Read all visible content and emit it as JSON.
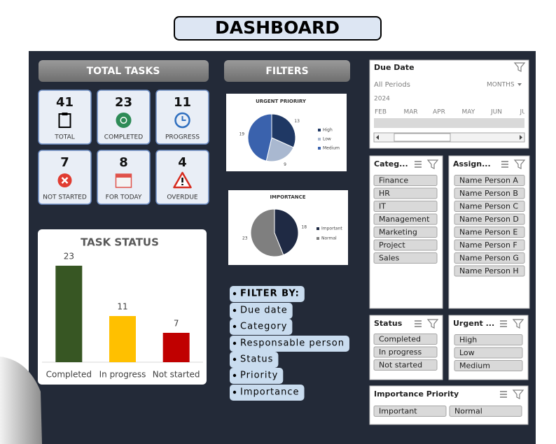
{
  "header": {
    "title": "DASHBOARD"
  },
  "sections": {
    "total_tasks": "TOTAL TASKS",
    "filters": "FILTERS"
  },
  "kpis": [
    {
      "value": 41,
      "label": "TOTAL"
    },
    {
      "value": 23,
      "label": "COMPLETED"
    },
    {
      "value": 11,
      "label": "PROGRESS"
    },
    {
      "value": 7,
      "label": "NOT STARTED"
    },
    {
      "value": 8,
      "label": "FOR TODAY"
    },
    {
      "value": 4,
      "label": "OVERDUE"
    }
  ],
  "chart_data": [
    {
      "type": "pie",
      "title": "URGENT PRIORIRY",
      "categories": [
        "High",
        "Low",
        "Medium"
      ],
      "values": [
        13,
        9,
        19
      ],
      "colors": [
        "#1f3864",
        "#a9b8d0",
        "#3a62ad"
      ]
    },
    {
      "type": "pie",
      "title": "IMPORTANCE",
      "categories": [
        "Important",
        "Normal"
      ],
      "values": [
        18,
        23
      ],
      "colors": [
        "#1f2a44",
        "#7f7f7f"
      ]
    },
    {
      "type": "bar",
      "title": "TASK STATUS",
      "categories": [
        "Completed",
        "In progress",
        "Not started"
      ],
      "values": [
        23,
        11,
        7
      ],
      "colors": [
        "#375623",
        "#ffc000",
        "#c00000"
      ]
    }
  ],
  "filter_by": {
    "title": "FILTER BY:",
    "items": [
      "Due date",
      "Category",
      "Responsable person",
      "Status",
      "Priority",
      "Importance"
    ]
  },
  "slicers": {
    "due_date": {
      "title": "Due Date",
      "period": "All Periods",
      "unit": "MONTHS",
      "year": "2024",
      "months": [
        "FEB",
        "MAR",
        "APR",
        "MAY",
        "JUN",
        "JUL"
      ]
    },
    "category": {
      "title": "Categ...",
      "items": [
        "Finance",
        "HR",
        "IT",
        "Management",
        "Marketing",
        "Project",
        "Sales"
      ]
    },
    "assigned": {
      "title": "Assign...",
      "items": [
        "Name Person A",
        "Name Person B",
        "Name Person C",
        "Name Person D",
        "Name Person E",
        "Name Person F",
        "Name Person G",
        "Name Person H"
      ]
    },
    "status": {
      "title": "Status",
      "items": [
        "Completed",
        "In progress",
        "Not started"
      ]
    },
    "urgent": {
      "title": "Urgent ...",
      "items": [
        "High",
        "Low",
        "Medium"
      ]
    },
    "importance": {
      "title": "Importance Priority",
      "items": [
        "Important",
        "Normal"
      ]
    }
  }
}
